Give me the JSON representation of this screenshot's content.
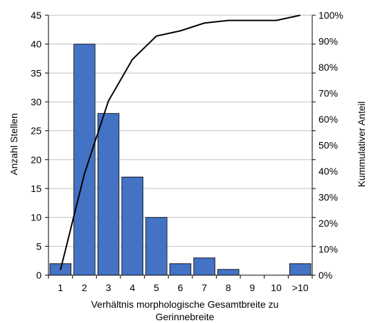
{
  "chart_data": {
    "type": "bar",
    "categories": [
      "1",
      "2",
      "3",
      "4",
      "5",
      "6",
      "7",
      "8",
      "9",
      "10",
      ">10"
    ],
    "series": [
      {
        "name": "Anzahl Stellen",
        "type": "bar",
        "axis": "left",
        "values": [
          2,
          40,
          28,
          17,
          10,
          2,
          3,
          1,
          0,
          0,
          2
        ]
      },
      {
        "name": "Kummulativer Anteil",
        "type": "line",
        "axis": "right",
        "values": [
          2,
          39,
          67,
          83,
          92,
          94,
          97,
          98,
          98,
          98,
          100
        ]
      }
    ],
    "xlabel_lines": [
      "Verhältnis morphologische Gesamtbreite zu",
      "Gerinnebreite"
    ],
    "ylabel": "Anzahl Stellen",
    "y2label": "Kummulativer Anteil",
    "ylim": [
      0,
      45
    ],
    "yticks": [
      0,
      5,
      10,
      15,
      20,
      25,
      30,
      35,
      40,
      45
    ],
    "y2lim": [
      0,
      100
    ],
    "y2ticks": [
      "0%",
      "10%",
      "20%",
      "30%",
      "40%",
      "50%",
      "60%",
      "70%",
      "80%",
      "90%",
      "100%"
    ],
    "grid": true,
    "colors": {
      "bar": "#4472c4",
      "bar_edge": "#000000",
      "line": "#000000",
      "grid": "#bfbfbf"
    }
  }
}
